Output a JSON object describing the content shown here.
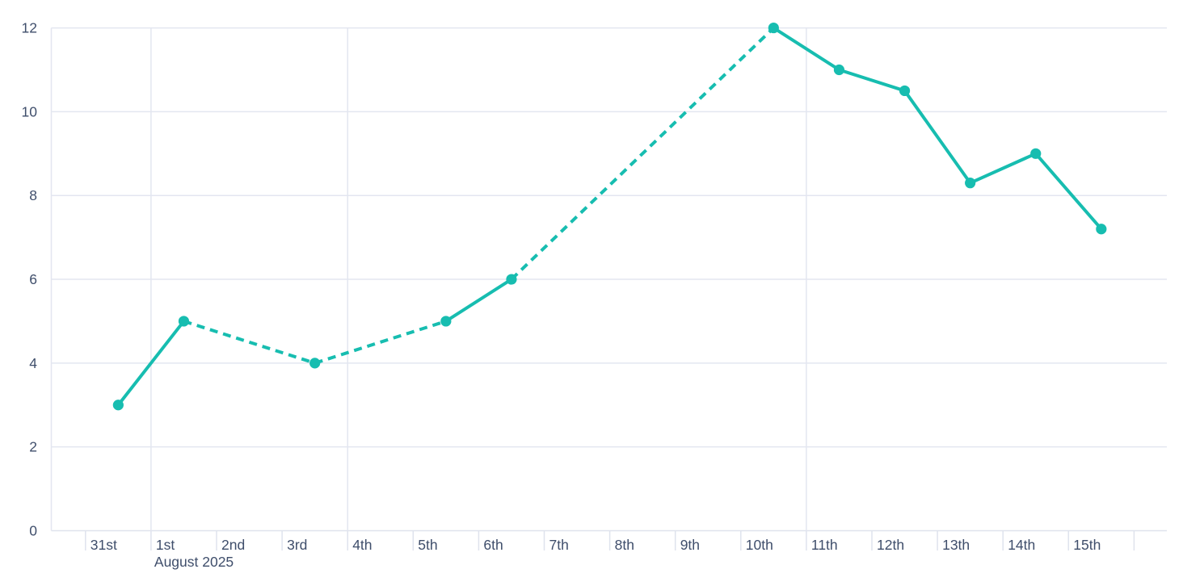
{
  "chart_data": {
    "type": "line",
    "title": "",
    "subtitle": "",
    "legend": "none",
    "x_axis": {
      "tick_labels": [
        "31st",
        "1st",
        "2nd",
        "3rd",
        "4th",
        "5th",
        "6th",
        "7th",
        "8th",
        "9th",
        "10th",
        "11th",
        "12th",
        "13th",
        "14th",
        "15th"
      ],
      "month_label": "August 2025",
      "month_label_under_day": "1st",
      "trailing_unlabeled_ticks": 1
    },
    "y_axis": {
      "ticks": [
        "0",
        "2",
        "4",
        "6",
        "8",
        "10",
        "12"
      ],
      "range": [
        0,
        12
      ]
    },
    "grid": {
      "horizontal": true,
      "vertical_gridline_day_labels": [
        "1st",
        "4th",
        "11th"
      ],
      "vertical_gridline_day_indices": [
        1,
        4,
        11
      ]
    },
    "series": [
      {
        "name": "daily-values",
        "points": [
          {
            "x": "31st",
            "day_index": 0,
            "value": 3,
            "segment_to_next": "solid"
          },
          {
            "x": "1st",
            "day_index": 1,
            "value": 5,
            "segment_to_next": "dashed"
          },
          {
            "x": "3rd",
            "day_index": 3,
            "value": 4,
            "segment_to_next": "dashed"
          },
          {
            "x": "5th",
            "day_index": 5,
            "value": 5,
            "segment_to_next": "solid"
          },
          {
            "x": "6th",
            "day_index": 6,
            "value": 6,
            "segment_to_next": "dashed"
          },
          {
            "x": "10th",
            "day_index": 10,
            "value": 12,
            "segment_to_next": "solid"
          },
          {
            "x": "11th",
            "day_index": 11,
            "value": 11,
            "segment_to_next": "solid"
          },
          {
            "x": "12th",
            "day_index": 12,
            "value": 10.5,
            "segment_to_next": "solid"
          },
          {
            "x": "13th",
            "day_index": 13,
            "value": 8.3,
            "segment_to_next": "solid"
          },
          {
            "x": "14th",
            "day_index": 14,
            "value": 9,
            "segment_to_next": "solid"
          },
          {
            "x": "15th",
            "day_index": 15,
            "value": 7.2,
            "segment_to_next": "solid"
          }
        ]
      }
    ],
    "colors": {
      "line": "#17BDB0",
      "point": "#17BDB0",
      "gridline": "#E3E6F0",
      "axis_line": "#DFE3ED",
      "tick_mark": "#DFE3ED",
      "label_text": "#3F4E6B",
      "background": "#FFFFFF"
    }
  }
}
